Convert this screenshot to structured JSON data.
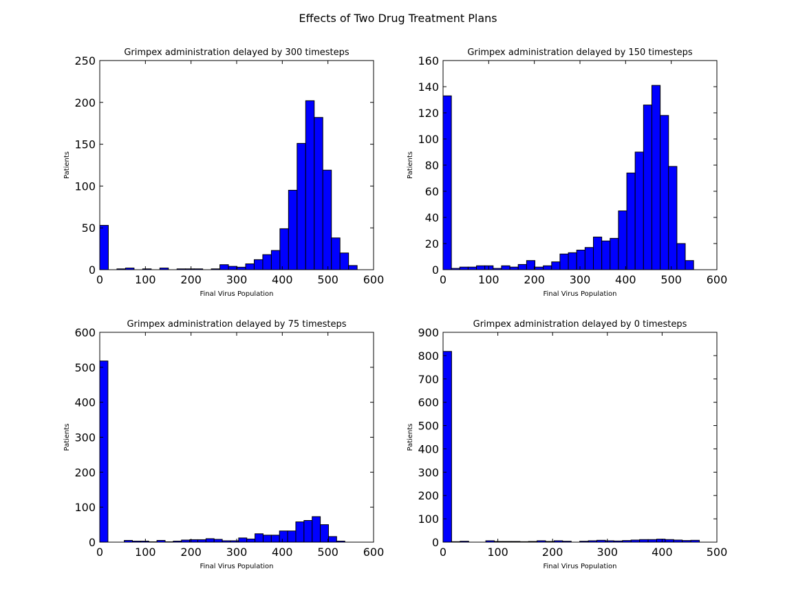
{
  "figure": {
    "suptitle": "Effects of Two Drug Treatment Plans",
    "bar_color": "#0000ff",
    "edge_color": "#000000"
  },
  "chart_data": [
    {
      "type": "bar",
      "title": "Grimpex administration delayed by 300 timesteps",
      "xlabel": "Final Virus Population",
      "ylabel": "Patients",
      "xlim": [
        0,
        600
      ],
      "ylim": [
        0,
        250
      ],
      "xticks": [
        0,
        100,
        200,
        300,
        400,
        500,
        600
      ],
      "yticks": [
        0,
        50,
        100,
        150,
        200,
        250
      ],
      "bin_width": 18.8,
      "x": [
        0,
        18.8,
        37.6,
        56.4,
        75.2,
        94,
        112.8,
        131.6,
        150.4,
        169.2,
        188,
        206.8,
        225.6,
        244.4,
        263.2,
        282,
        300.8,
        319.6,
        338.4,
        357.2,
        376,
        394.8,
        413.6,
        432.4,
        451.2,
        470,
        488.8,
        507.6,
        526.4,
        545.2
      ],
      "values": [
        53,
        0,
        1,
        2,
        0,
        1,
        0,
        2,
        0,
        1,
        1,
        1,
        0,
        1,
        6,
        4,
        3,
        7,
        12,
        18,
        23,
        49,
        95,
        151,
        202,
        182,
        119,
        38,
        20,
        5
      ]
    },
    {
      "type": "bar",
      "title": "Grimpex administration delayed by 150 timesteps",
      "xlabel": "Final Virus Population",
      "ylabel": "Patients",
      "xlim": [
        0,
        600
      ],
      "ylim": [
        0,
        160
      ],
      "xticks": [
        0,
        100,
        200,
        300,
        400,
        500,
        600
      ],
      "yticks": [
        0,
        20,
        40,
        60,
        80,
        100,
        120,
        140,
        160
      ],
      "bin_width": 18.3,
      "x": [
        0,
        18.3,
        36.6,
        54.9,
        73.2,
        91.5,
        109.8,
        128.1,
        146.4,
        164.7,
        183,
        201.3,
        219.6,
        237.9,
        256.2,
        274.5,
        292.8,
        311.1,
        329.4,
        347.7,
        366,
        384.3,
        402.6,
        420.9,
        439.2,
        457.5,
        475.8,
        494.1,
        512.4,
        530.7
      ],
      "values": [
        133,
        1,
        2,
        2,
        3,
        3,
        1,
        3,
        2,
        4,
        7,
        2,
        3,
        6,
        12,
        13,
        15,
        17,
        25,
        22,
        24,
        45,
        74,
        90,
        126,
        141,
        118,
        79,
        20,
        7
      ]
    },
    {
      "type": "bar",
      "title": "Grimpex administration delayed by 75 timesteps",
      "xlabel": "Final Virus Population",
      "ylabel": "Patients",
      "xlim": [
        0,
        600
      ],
      "ylim": [
        0,
        600
      ],
      "xticks": [
        0,
        100,
        200,
        300,
        400,
        500,
        600
      ],
      "yticks": [
        0,
        100,
        200,
        300,
        400,
        500,
        600
      ],
      "bin_width": 17.9,
      "x": [
        0,
        17.9,
        35.8,
        53.7,
        71.6,
        89.5,
        107.4,
        125.3,
        143.2,
        161.1,
        179,
        196.9,
        214.8,
        232.7,
        250.6,
        268.5,
        286.4,
        304.3,
        322.2,
        340.1,
        358,
        375.9,
        393.8,
        411.7,
        429.6,
        447.5,
        465.4,
        483.3,
        501.2,
        519.1
      ],
      "values": [
        518,
        0,
        0,
        5,
        3,
        3,
        1,
        5,
        1,
        3,
        6,
        7,
        7,
        10,
        8,
        4,
        4,
        12,
        9,
        24,
        20,
        20,
        32,
        32,
        58,
        62,
        73,
        50,
        16,
        3
      ]
    },
    {
      "type": "bar",
      "title": "Grimpex administration delayed by 0 timesteps",
      "xlabel": "Final Virus Population",
      "ylabel": "Patients",
      "xlim": [
        0,
        500
      ],
      "ylim": [
        0,
        900
      ],
      "xticks": [
        0,
        100,
        200,
        300,
        400,
        500
      ],
      "yticks": [
        0,
        100,
        200,
        300,
        400,
        500,
        600,
        700,
        800,
        900
      ],
      "bin_width": 15.6,
      "x": [
        0,
        15.6,
        31.2,
        46.8,
        62.4,
        78,
        93.6,
        109.2,
        124.8,
        140.4,
        156,
        171.6,
        187.2,
        202.8,
        218.4,
        234,
        249.6,
        265.2,
        280.8,
        296.4,
        312,
        327.6,
        343.2,
        358.8,
        374.4,
        390,
        405.6,
        421.2,
        436.8,
        452.4
      ],
      "values": [
        818,
        2,
        4,
        0,
        0,
        6,
        3,
        3,
        3,
        2,
        3,
        6,
        3,
        6,
        4,
        0,
        4,
        6,
        8,
        6,
        5,
        7,
        9,
        11,
        11,
        13,
        11,
        9,
        7,
        8
      ]
    }
  ]
}
